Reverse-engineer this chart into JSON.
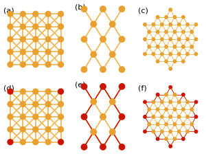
{
  "cu_color": "#E8A030",
  "o_color": "#CC1500",
  "bond_cu": "#F0BC60",
  "bond_o": "#CC1500",
  "lfs": 8,
  "panels": [
    "(a)",
    "(b)",
    "(c)",
    "(d)",
    "(e)",
    "(f)"
  ]
}
